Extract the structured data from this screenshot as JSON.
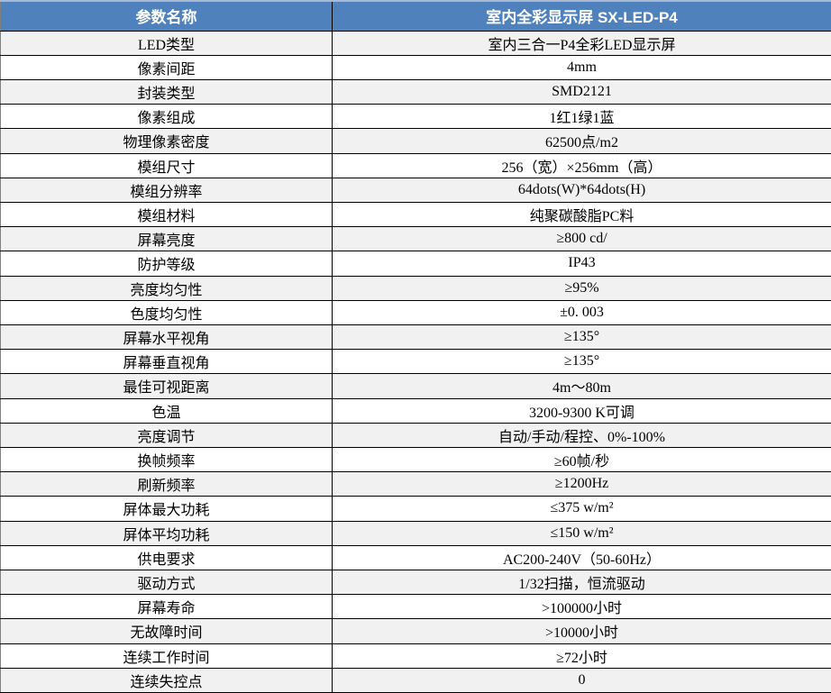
{
  "table": {
    "header": {
      "param": "参数名称",
      "product": "室内全彩显示屏 SX-LED-P4"
    },
    "rows": [
      {
        "label": "LED类型",
        "value": "室内三合一P4全彩LED显示屏"
      },
      {
        "label": "像素间距",
        "value": "4mm"
      },
      {
        "label": "封装类型",
        "value": "SMD2121"
      },
      {
        "label": "像素组成",
        "value": "1红1绿1蓝"
      },
      {
        "label": "物理像素密度",
        "value": "62500点/m2"
      },
      {
        "label": "模组尺寸",
        "value": "256（宽）×256mm（高）"
      },
      {
        "label": "模组分辨率",
        "value": "64dots(W)*64dots(H)"
      },
      {
        "label": "模组材料",
        "value": "纯聚碳酸脂PC料"
      },
      {
        "label": "屏幕亮度",
        "value": "≥800 cd/"
      },
      {
        "label": "防护等级",
        "value": "IP43"
      },
      {
        "label": "亮度均匀性",
        "value": "≥95%"
      },
      {
        "label": "色度均匀性",
        "value": "±0. 003"
      },
      {
        "label": "屏幕水平视角",
        "value": "≥135°"
      },
      {
        "label": "屏幕垂直视角",
        "value": "≥135°"
      },
      {
        "label": "最佳可视距离",
        "value": "4m～80m"
      },
      {
        "label": "色温",
        "value": "3200-9300 K可调"
      },
      {
        "label": "亮度调节",
        "value": "自动/手动/程控、0%-100%"
      },
      {
        "label": "换帧频率",
        "value": "≥60帧/秒"
      },
      {
        "label": "刷新频率",
        "value": "≥1200Hz"
      },
      {
        "label": "屏体最大功耗",
        "value": "≤375 w/m²"
      },
      {
        "label": "屏体平均功耗",
        "value": "≤150 w/m²"
      },
      {
        "label": "供电要求",
        "value": "AC200-240V（50-60Hz）"
      },
      {
        "label": "驱动方式",
        "value": "1/32扫描，恒流驱动"
      },
      {
        "label": "屏幕寿命",
        "value": ">100000小时"
      },
      {
        "label": "无故障时间",
        "value": ">10000小时"
      },
      {
        "label": "连续工作时间",
        "value": "≥72小时"
      },
      {
        "label": "连续失控点",
        "value": "0"
      }
    ]
  },
  "colors": {
    "header_bg": "#4F81BD",
    "header_text": "#FFFFFF",
    "alt_row_bg": "#F1F1F1",
    "row_bg": "#FFFFFF",
    "border": "#000000",
    "top_accent": "#A7B9D3",
    "left_border": "#808080"
  }
}
